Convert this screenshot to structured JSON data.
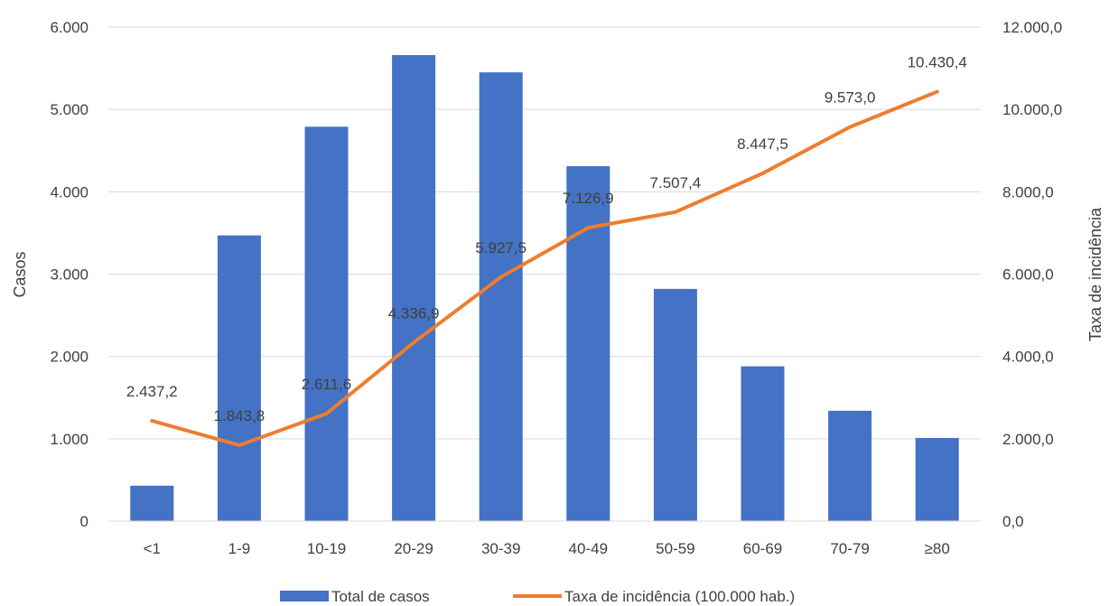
{
  "chart_data": {
    "type": "bar",
    "categories": [
      "<1",
      "1-9",
      "10-19",
      "20-29",
      "30-39",
      "40-49",
      "50-59",
      "60-69",
      "70-79",
      "≥80"
    ],
    "series": [
      {
        "name": "Total de casos",
        "type": "bar",
        "axis": "left",
        "color": "#4472C4",
        "values": [
          430,
          3470,
          4790,
          5660,
          5450,
          4310,
          2820,
          1880,
          1340,
          1010
        ]
      },
      {
        "name": "Taxa de incidência (100.000 hab.)",
        "type": "line",
        "axis": "right",
        "color": "#ED7D31",
        "values": [
          2437.2,
          1843.8,
          2611.6,
          4336.9,
          5927.5,
          7126.9,
          7507.4,
          8447.5,
          9573.0,
          10430.4
        ],
        "data_labels": [
          "2.437,2",
          "1.843,8",
          "2.611,6",
          "4.336,9",
          "5.927,5",
          "7.126,9",
          "7.507,4",
          "8.447,5",
          "9.573,0",
          "10.430,4"
        ]
      }
    ],
    "ylabel": "Casos",
    "y2label": "Taxa de incidência",
    "ylim": [
      0,
      6000
    ],
    "y2lim": [
      0,
      12000
    ],
    "yticks": [
      0,
      1000,
      2000,
      3000,
      4000,
      5000,
      6000
    ],
    "yticklabels": [
      "0",
      "1.000",
      "2.000",
      "3.000",
      "4.000",
      "5.000",
      "6.000"
    ],
    "y2ticks": [
      0,
      2000,
      4000,
      6000,
      8000,
      10000,
      12000
    ],
    "y2ticklabels": [
      "0,0",
      "2.000,0",
      "4.000,0",
      "6.000,0",
      "8.000,0",
      "10.000,0",
      "12.000,0"
    ],
    "grid": true,
    "legend": "bottom-center"
  }
}
